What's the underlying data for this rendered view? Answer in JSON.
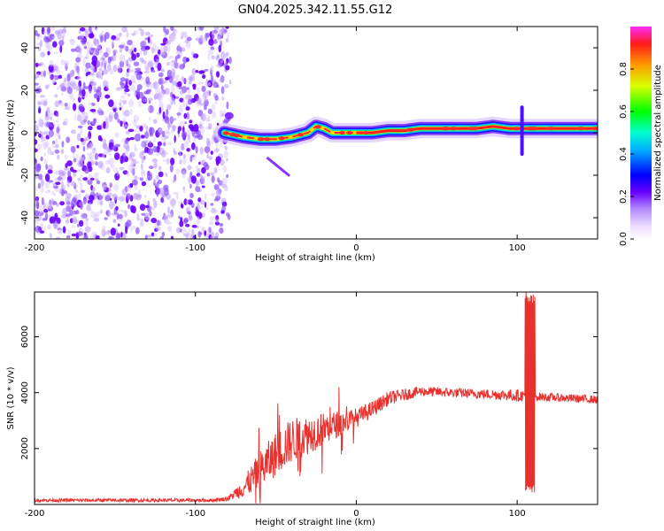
{
  "title": "GN04.2025.342.11.55.G12",
  "chart_data": [
    {
      "type": "heatmap",
      "xlabel": "Height of straight line (km)",
      "ylabel": "Frequency (Hz)",
      "xlim": [
        -200,
        150
      ],
      "ylim": [
        -50,
        50
      ],
      "xticks": [
        -200,
        -100,
        0,
        100
      ],
      "yticks": [
        -40,
        -20,
        0,
        20,
        40
      ],
      "colorbar": {
        "label": "Normalized spectral amplitude",
        "range": [
          0,
          1
        ],
        "ticks": [
          "0.0",
          "0.2",
          "0.4",
          "0.6",
          "0.8"
        ]
      },
      "noise_region_x": [
        -200,
        -80
      ],
      "signal_x_start": -82,
      "ridge_start_x": 0,
      "ridge": [
        {
          "x": -82,
          "f": 0
        },
        {
          "x": -70,
          "f": -2
        },
        {
          "x": -60,
          "f": -3
        },
        {
          "x": -50,
          "f": -3
        },
        {
          "x": -40,
          "f": -2
        },
        {
          "x": -30,
          "f": 0
        },
        {
          "x": -25,
          "f": 3
        },
        {
          "x": -20,
          "f": 2
        },
        {
          "x": -15,
          "f": 0
        },
        {
          "x": -10,
          "f": 0
        },
        {
          "x": 0,
          "f": 0
        },
        {
          "x": 10,
          "f": 0
        },
        {
          "x": 20,
          "f": 1
        },
        {
          "x": 30,
          "f": 1
        },
        {
          "x": 40,
          "f": 2
        },
        {
          "x": 60,
          "f": 2
        },
        {
          "x": 75,
          "f": 2
        },
        {
          "x": 85,
          "f": 3
        },
        {
          "x": 95,
          "f": 2
        },
        {
          "x": 105,
          "f": 2
        },
        {
          "x": 150,
          "f": 2
        }
      ],
      "streak": {
        "x": [
          -55,
          -42
        ],
        "f": [
          -12,
          -20
        ]
      },
      "spike_x": 103,
      "spike_f": [
        -10,
        12
      ]
    },
    {
      "type": "line",
      "xlabel": "Height of straight line (km)",
      "ylabel": "SNR (10 * v/v)",
      "xlim": [
        -200,
        150
      ],
      "ylim": [
        0,
        7600
      ],
      "xticks": [
        -200,
        -100,
        0,
        100
      ],
      "yticks": [
        2000,
        4000,
        6000
      ],
      "color": "#e8312d",
      "envelope": [
        {
          "x": -200,
          "mean": 150,
          "spread": 60
        },
        {
          "x": -90,
          "mean": 150,
          "spread": 60
        },
        {
          "x": -80,
          "mean": 200,
          "spread": 80
        },
        {
          "x": -70,
          "mean": 600,
          "spread": 350
        },
        {
          "x": -60,
          "mean": 1200,
          "spread": 700
        },
        {
          "x": -50,
          "mean": 1800,
          "spread": 800
        },
        {
          "x": -40,
          "mean": 2300,
          "spread": 800
        },
        {
          "x": -30,
          "mean": 2500,
          "spread": 700
        },
        {
          "x": -20,
          "mean": 2700,
          "spread": 600
        },
        {
          "x": -10,
          "mean": 2900,
          "spread": 450
        },
        {
          "x": 0,
          "mean": 3100,
          "spread": 350
        },
        {
          "x": 10,
          "mean": 3400,
          "spread": 300
        },
        {
          "x": 20,
          "mean": 3800,
          "spread": 250
        },
        {
          "x": 40,
          "mean": 4050,
          "spread": 180
        },
        {
          "x": 60,
          "mean": 4000,
          "spread": 170
        },
        {
          "x": 80,
          "mean": 3950,
          "spread": 180
        },
        {
          "x": 100,
          "mean": 3900,
          "spread": 220
        },
        {
          "x": 115,
          "mean": 3850,
          "spread": 150
        },
        {
          "x": 150,
          "mean": 3750,
          "spread": 150
        }
      ],
      "spike_x": [
        105,
        111
      ],
      "spike_range": [
        300,
        7600
      ]
    }
  ]
}
